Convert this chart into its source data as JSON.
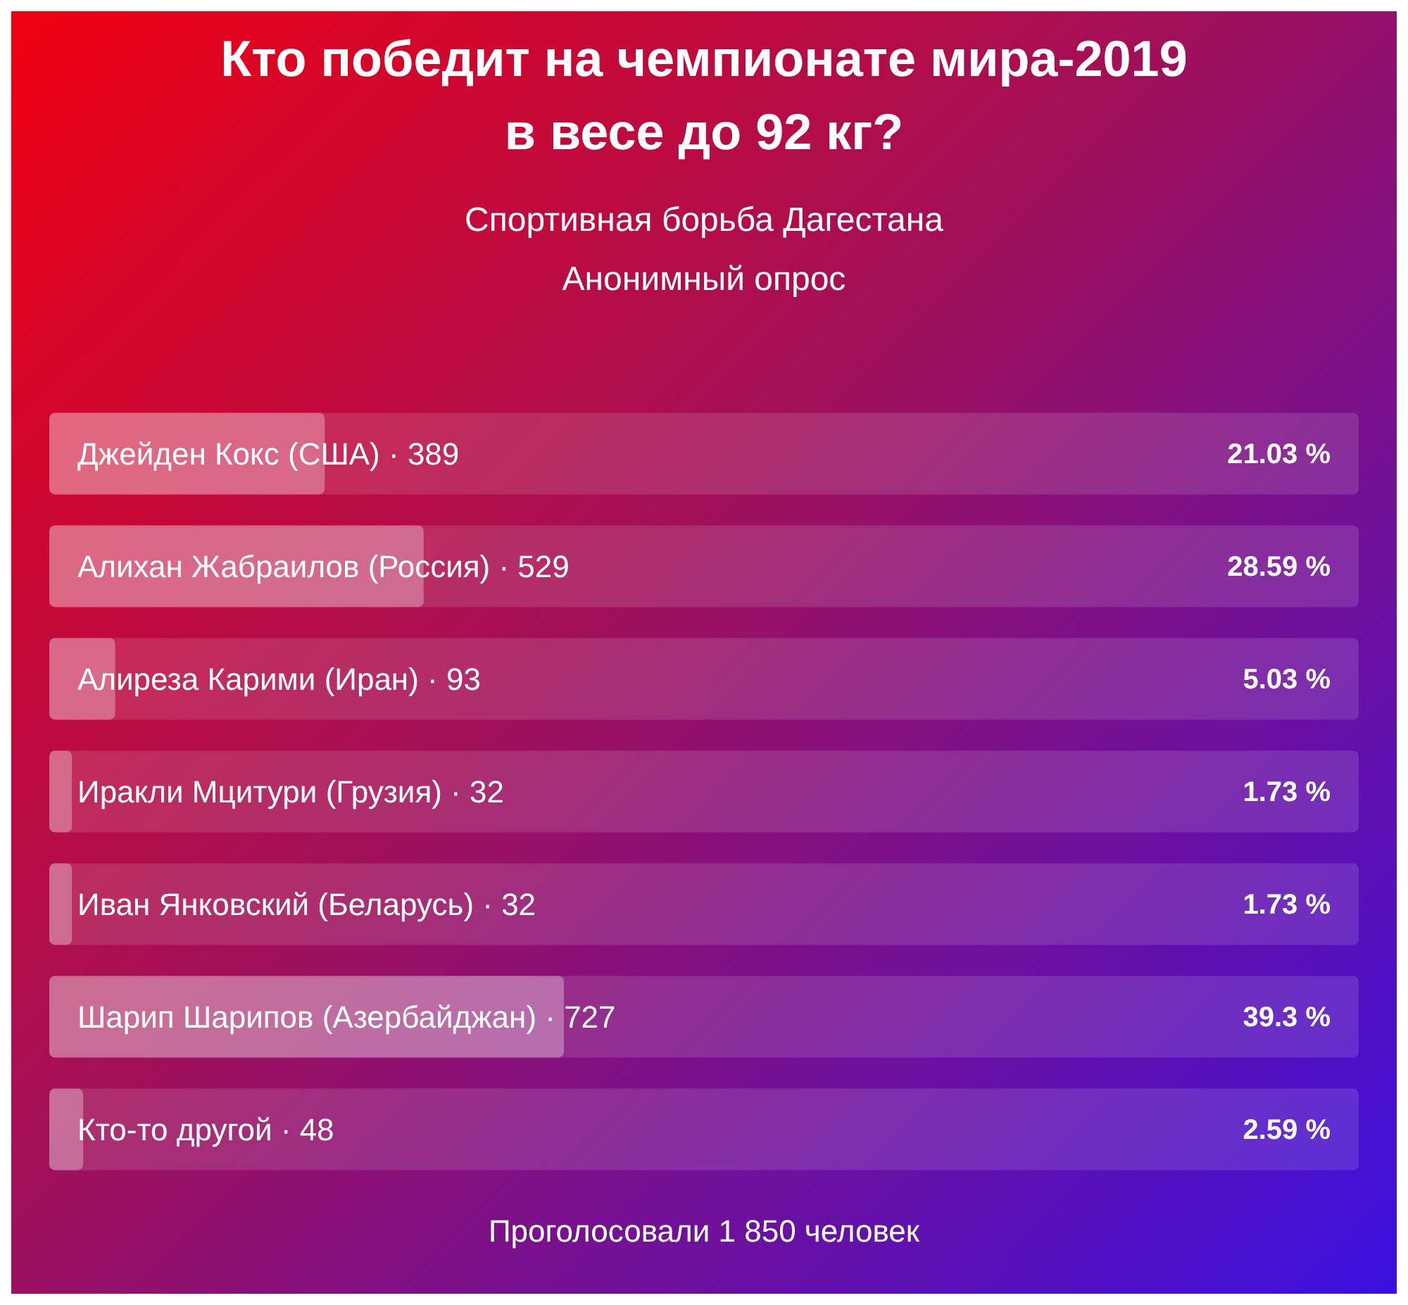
{
  "chart_data": {
    "type": "bar",
    "orientation": "horizontal",
    "title": "Кто победит на чемпионате мира-2019\nв весе до 92 кг?",
    "subtitle": "Спортивная борьба Дагестана\nАнонимный опрос",
    "categories": [
      "Джейден Кокс (США) · 389",
      "Алихан Жабраилов (Россия) · 529",
      "Алиреза Карими (Иран) · 93",
      "Иракли Мцитури (Грузия) · 32",
      "Иван Янковский (Беларусь) · 32",
      "Шарип Шарипов (Азербайджан) · 727",
      "Кто-то другой · 48"
    ],
    "values": [
      21.03,
      28.59,
      5.03,
      1.73,
      1.73,
      39.3,
      2.59
    ],
    "value_labels": [
      "21.03 %",
      "28.59 %",
      "5.03 %",
      "1.73 %",
      "1.73 %",
      "39.3 %",
      "2.59 %"
    ],
    "color": "#ffffff",
    "xlim": [
      0,
      100
    ],
    "annotations": [
      "Проголосовали 1 850 человек"
    ]
  }
}
